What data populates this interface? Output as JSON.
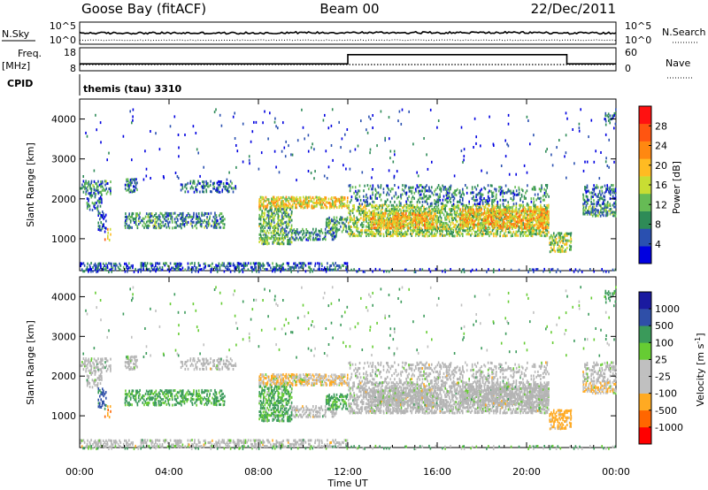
{
  "header": {
    "station": "Goose Bay (fitACF)",
    "beam": "Beam 00",
    "date": "22/Dec/2011"
  },
  "sky_panel": {
    "left_label": "N.Sky",
    "right_label": "N.Search",
    "left_ticks": [
      "10^5",
      "10^0"
    ],
    "right_ticks": [
      "10^5",
      "10^0"
    ]
  },
  "freq_panel": {
    "left_label_1": "Freq.",
    "left_label_2": "[MHz]",
    "right_label": "Nave",
    "left_ticks": [
      "18",
      "8"
    ],
    "right_ticks": [
      "60",
      "0"
    ],
    "cpid_label": "CPID",
    "cpid_value": "themis (tau) 3310"
  },
  "colors": {
    "power_scale": [
      "#0000e0",
      "#2a50b0",
      "#2e8b57",
      "#66bb55",
      "#c8dd33",
      "#ffbb22",
      "#ff8811",
      "#ff5511",
      "#ff1111"
    ],
    "velocity_scale": [
      "#ff0000",
      "#ff6600",
      "#ffaa22",
      "#c0c0c0",
      "#c0c0c0",
      "#66cc33",
      "#3a9a5a",
      "#2f4fa8",
      "#1a1aa0"
    ],
    "ground_scatter": "#b4b4b4"
  },
  "chart_data": [
    {
      "type": "heatmap",
      "name": "power",
      "ylabel": "Slant Range [km]",
      "yticks": [
        "1000",
        "2000",
        "3000",
        "4000"
      ],
      "ylim": [
        200,
        4500
      ],
      "x_range_hours": [
        0,
        24
      ],
      "colorbar_label": "Power [dB]",
      "colorbar_ticks": [
        "4",
        "8",
        "12",
        "16",
        "20",
        "24",
        "28"
      ],
      "clim": [
        0,
        32
      ]
    },
    {
      "type": "heatmap",
      "name": "velocity",
      "ylabel": "Slant Range [km]",
      "yticks": [
        "1000",
        "2000",
        "3000",
        "4000"
      ],
      "ylim": [
        200,
        4500
      ],
      "x_range_hours": [
        0,
        24
      ],
      "colorbar_label": "Velocity [m s",
      "colorbar_label_sup": "-1",
      "colorbar_label_end": "]",
      "colorbar_ticks": [
        "1000",
        "500",
        "100",
        "25",
        "-25",
        "-100",
        "-500",
        "-1000"
      ],
      "xlabel": "Time UT",
      "xticks": [
        "00:00",
        "04:00",
        "08:00",
        "12:00",
        "16:00",
        "20:00",
        "00:00"
      ]
    }
  ],
  "scatter_regions": [
    {
      "t0": 0.0,
      "t1": 1.4,
      "r0": 2150,
      "r1": 2500,
      "p": 9,
      "d": 0.45,
      "gs": true,
      "v": 10
    },
    {
      "t0": 0.3,
      "t1": 1.0,
      "r0": 1750,
      "r1": 2200,
      "p": 7,
      "d": 0.35,
      "gs": true,
      "v": 0
    },
    {
      "t0": 0.8,
      "t1": 1.2,
      "r0": 1200,
      "r1": 1750,
      "p": 5,
      "d": 0.35,
      "gs": false,
      "v": 600
    },
    {
      "t0": 1.1,
      "t1": 1.4,
      "r0": 1000,
      "r1": 1300,
      "p": 20,
      "d": 0.25,
      "gs": false,
      "v": -500
    },
    {
      "t0": 2.0,
      "t1": 2.6,
      "r0": 2200,
      "r1": 2550,
      "p": 6,
      "d": 0.4,
      "gs": true,
      "v": 0
    },
    {
      "t0": 2.0,
      "t1": 6.5,
      "r0": 1300,
      "r1": 1700,
      "p": 9,
      "d": 0.4,
      "gs": false,
      "v": 150
    },
    {
      "t0": 4.5,
      "t1": 7.0,
      "r0": 2200,
      "r1": 2500,
      "p": 6,
      "d": 0.4,
      "gs": true,
      "v": 0
    },
    {
      "t0": 8.0,
      "t1": 12.0,
      "r0": 1800,
      "r1": 2100,
      "p": 18,
      "d": 0.6,
      "gs": false,
      "v": -80
    },
    {
      "t0": 8.0,
      "t1": 9.5,
      "r0": 900,
      "r1": 1800,
      "p": 12,
      "d": 0.55,
      "gs": false,
      "v": 120
    },
    {
      "t0": 9.5,
      "t1": 11.5,
      "r0": 1000,
      "r1": 1300,
      "p": 8,
      "d": 0.4,
      "gs": true,
      "v": 0
    },
    {
      "t0": 11.0,
      "t1": 12.0,
      "r0": 1200,
      "r1": 1600,
      "p": 10,
      "d": 0.5,
      "gs": false,
      "v": 150
    },
    {
      "t0": 12.0,
      "t1": 21.0,
      "r0": 1100,
      "r1": 1900,
      "p": 14,
      "d": 0.55,
      "gs": true,
      "v": 0
    },
    {
      "t0": 13.0,
      "t1": 16.0,
      "r0": 1300,
      "r1": 1700,
      "p": 20,
      "d": 0.55,
      "gs": true,
      "v": 0
    },
    {
      "t0": 17.0,
      "t1": 21.0,
      "r0": 1300,
      "r1": 1800,
      "p": 20,
      "d": 0.55,
      "gs": true,
      "v": 0
    },
    {
      "t0": 12.0,
      "t1": 21.0,
      "r0": 1900,
      "r1": 2400,
      "p": 8,
      "d": 0.25,
      "gs": true,
      "v": 0
    },
    {
      "t0": 21.0,
      "t1": 22.0,
      "r0": 700,
      "r1": 1200,
      "p": 14,
      "d": 0.5,
      "gs": false,
      "v": -200
    },
    {
      "t0": 22.5,
      "t1": 24.0,
      "r0": 1600,
      "r1": 1900,
      "p": 10,
      "d": 0.5,
      "gs": false,
      "v": -90
    },
    {
      "t0": 22.5,
      "t1": 24.0,
      "r0": 1900,
      "r1": 2400,
      "p": 8,
      "d": 0.45,
      "gs": true,
      "v": 0
    },
    {
      "t0": 23.5,
      "t1": 24.0,
      "r0": 3800,
      "r1": 4200,
      "p": 6,
      "d": 0.3,
      "gs": false,
      "v": 300
    },
    {
      "t0": 0.0,
      "t1": 12.0,
      "r0": 250,
      "r1": 450,
      "p": 6,
      "d": 0.45,
      "gs": true,
      "v": 0
    },
    {
      "t0": 0.0,
      "t1": 24.0,
      "r0": 200,
      "r1": 300,
      "p": 4,
      "d": 0.18,
      "gs": false,
      "v": 80
    },
    {
      "t0": 0.0,
      "t1": 24.0,
      "r0": 2500,
      "r1": 4300,
      "p": 4,
      "d": 0.015,
      "gs": false,
      "v": 100
    }
  ],
  "freq_series": {
    "segments": [
      {
        "t0": 0,
        "t1": 12,
        "f": 11
      },
      {
        "t0": 12,
        "t1": 21.8,
        "f": 15
      },
      {
        "t0": 21.8,
        "t1": 24,
        "f": 11
      }
    ]
  }
}
